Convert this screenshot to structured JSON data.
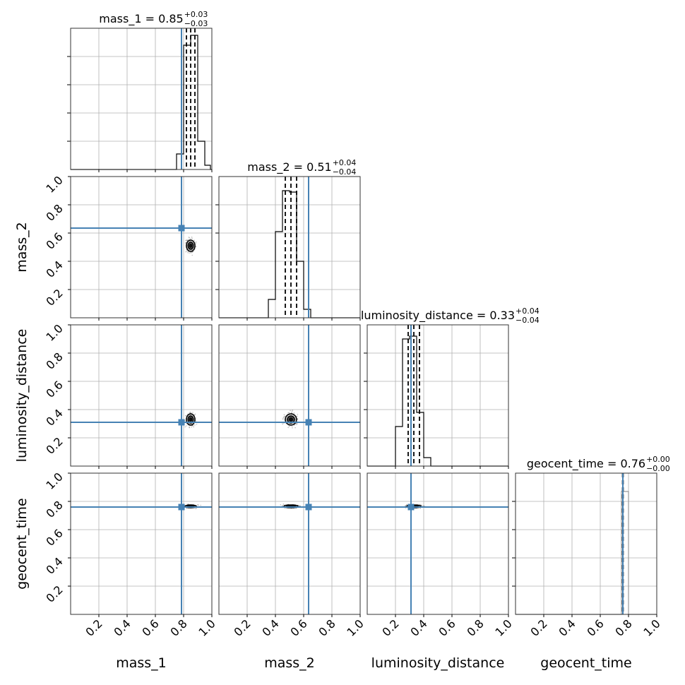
{
  "chart_data": {
    "type": "corner",
    "parameters": [
      "mass_1",
      "mass_2",
      "luminosity_distance",
      "geocent_time"
    ],
    "axis_labels": [
      "mass_1",
      "mass_2",
      "luminosity_distance",
      "geocent_time"
    ],
    "range": [
      0,
      1
    ],
    "tick_labels": [
      "0.2",
      "0.4",
      "0.6",
      "0.8",
      "1.0"
    ],
    "tick_values": [
      0.2,
      0.4,
      0.6,
      0.8,
      1.0
    ],
    "grid": true,
    "truth_color": "#4682b4",
    "hist_color": "#000000",
    "summaries": [
      {
        "param": "mass_1",
        "label": "mass_1 = 0.85",
        "median": 0.85,
        "plus": "+0.03",
        "minus": "−0.03",
        "plus_value": 0.03,
        "minus_value": 0.03
      },
      {
        "param": "mass_2",
        "label": "mass_2 = 0.51",
        "median": 0.51,
        "plus": "+0.04",
        "minus": "−0.04",
        "plus_value": 0.04,
        "minus_value": 0.04
      },
      {
        "param": "luminosity_distance",
        "label": "luminosity_distance = 0.33",
        "median": 0.33,
        "plus": "+0.04",
        "minus": "−0.04",
        "plus_value": 0.04,
        "minus_value": 0.04
      },
      {
        "param": "geocent_time",
        "label": "geocent_time = 0.76",
        "median": 0.76,
        "plus": "+0.00",
        "minus": "−0.00",
        "plus_value": 0.0,
        "minus_value": 0.0
      }
    ],
    "truths": {
      "mass_1": 0.785,
      "mass_2": 0.635,
      "luminosity_distance": 0.31,
      "geocent_time": 0.76
    },
    "histograms": [
      {
        "param": "mass_1",
        "bin_edges": [
          0.65,
          0.75,
          0.8,
          0.85,
          0.9,
          0.95,
          0.99
        ],
        "heights": [
          0,
          0.11,
          0.88,
          0.95,
          0.2,
          0.03
        ]
      },
      {
        "param": "mass_2",
        "bin_edges": [
          0.35,
          0.4,
          0.45,
          0.5,
          0.55,
          0.6,
          0.65
        ],
        "heights": [
          0.13,
          0.61,
          0.9,
          0.89,
          0.4,
          0.06
        ]
      },
      {
        "param": "luminosity_distance",
        "bin_edges": [
          0.2,
          0.25,
          0.3,
          0.35,
          0.4,
          0.45
        ],
        "heights": [
          0.28,
          0.9,
          0.92,
          0.38,
          0.06
        ]
      },
      {
        "param": "geocent_time",
        "bin_edges": [
          0.75,
          0.8
        ],
        "heights": [
          0.87
        ]
      }
    ],
    "quantiles": {
      "mass_1": [
        0.82,
        0.85,
        0.88
      ],
      "mass_2": [
        0.47,
        0.51,
        0.55
      ],
      "luminosity_distance": [
        0.29,
        0.33,
        0.37
      ],
      "geocent_time": [
        0.758,
        0.76,
        0.762
      ]
    },
    "contours": [
      {
        "x": "mass_1",
        "y": "mass_2",
        "cx": 0.85,
        "cy": 0.51,
        "sx": 0.03,
        "sy": 0.04
      },
      {
        "x": "mass_1",
        "y": "luminosity_distance",
        "cx": 0.85,
        "cy": 0.33,
        "sx": 0.03,
        "sy": 0.04
      },
      {
        "x": "mass_2",
        "y": "luminosity_distance",
        "cx": 0.51,
        "cy": 0.33,
        "sx": 0.04,
        "sy": 0.04
      },
      {
        "x": "mass_1",
        "y": "geocent_time",
        "cx": 0.85,
        "cy": 0.765,
        "sx": 0.04,
        "sy": 0.01
      },
      {
        "x": "mass_2",
        "y": "geocent_time",
        "cx": 0.51,
        "cy": 0.765,
        "sx": 0.05,
        "sy": 0.01
      },
      {
        "x": "luminosity_distance",
        "y": "geocent_time",
        "cx": 0.33,
        "cy": 0.765,
        "sx": 0.05,
        "sy": 0.01
      }
    ]
  }
}
